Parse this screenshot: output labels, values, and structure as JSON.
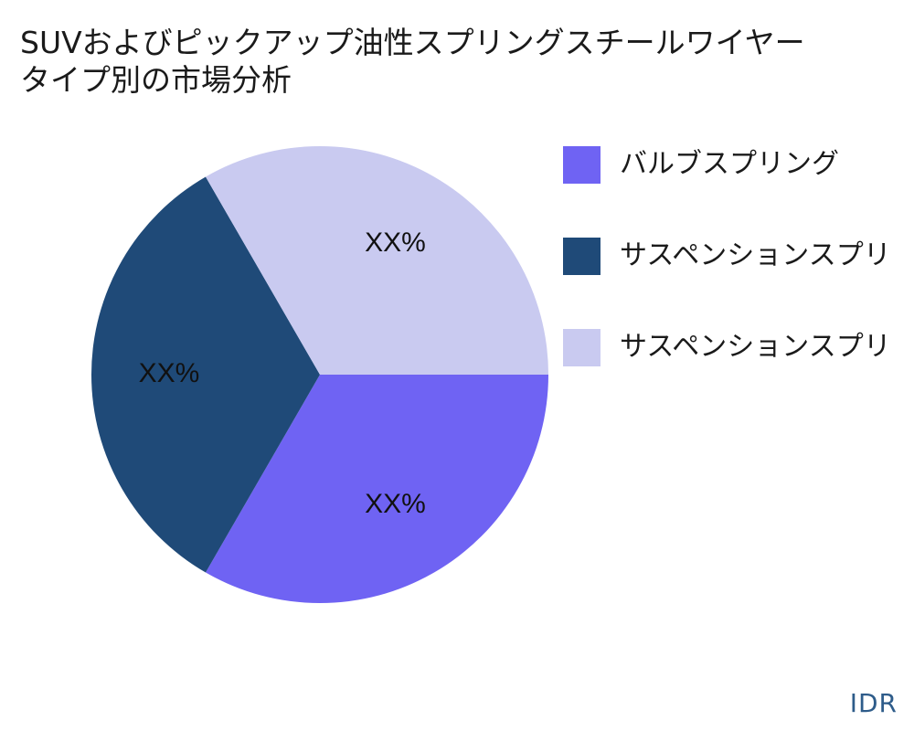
{
  "title_lines": [
    "SUVおよびピックアップ油性スプリングスチールワイヤー",
    "タイプ別の市場分析"
  ],
  "brand": "IDR",
  "chart_data": {
    "type": "pie",
    "start_angle_deg": 0,
    "direction": "clockwise",
    "slices": [
      {
        "name": "バルブスプリング",
        "value": 33.33,
        "label": "XX%",
        "color": "#6f63f3"
      },
      {
        "name": "サスペンションスプリ",
        "value": 33.33,
        "label": "XX%",
        "color": "#1f4a78"
      },
      {
        "name": "サスペンションスプリ",
        "value": 33.33,
        "label": "XX%",
        "color": "#c9caf0"
      }
    ],
    "legend": {
      "position": "right",
      "entries": [
        "バルブスプリング",
        "サスペンションスプリ",
        "サスペンションスプリ"
      ]
    }
  }
}
